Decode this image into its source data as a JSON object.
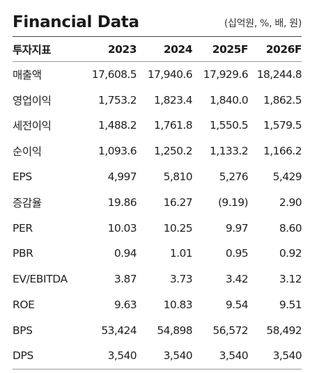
{
  "header": {
    "title": "Financial Data",
    "units": "(십억원, %, 배, 원)"
  },
  "table": {
    "columns": [
      "투자지표",
      "2023",
      "2024",
      "2025F",
      "2026F"
    ],
    "rows": [
      {
        "label": "매출액",
        "values": [
          "17,608.5",
          "17,940.6",
          "17,929.6",
          "18,244.8"
        ]
      },
      {
        "label": "영업이익",
        "values": [
          "1,753.2",
          "1,823.4",
          "1,840.0",
          "1,862.5"
        ]
      },
      {
        "label": "세전이익",
        "values": [
          "1,488.2",
          "1,761.8",
          "1,550.5",
          "1,579.5"
        ]
      },
      {
        "label": "순이익",
        "values": [
          "1,093.6",
          "1,250.2",
          "1,133.2",
          "1,166.2"
        ]
      },
      {
        "label": "EPS",
        "values": [
          "4,997",
          "5,810",
          "5,276",
          "5,429"
        ]
      },
      {
        "label": "증감율",
        "values": [
          "19.86",
          "16.27",
          "(9.19)",
          "2.90"
        ]
      },
      {
        "label": "PER",
        "values": [
          "10.03",
          "10.25",
          "9.97",
          "8.60"
        ]
      },
      {
        "label": "PBR",
        "values": [
          "0.94",
          "1.01",
          "0.95",
          "0.92"
        ]
      },
      {
        "label": "EV/EBITDA",
        "values": [
          "3.87",
          "3.73",
          "3.42",
          "3.12"
        ]
      },
      {
        "label": "ROE",
        "values": [
          "9.63",
          "10.83",
          "9.54",
          "9.51"
        ]
      },
      {
        "label": "BPS",
        "values": [
          "53,424",
          "54,898",
          "56,572",
          "58,492"
        ]
      },
      {
        "label": "DPS",
        "values": [
          "3,540",
          "3,540",
          "3,540",
          "3,540"
        ]
      }
    ]
  }
}
